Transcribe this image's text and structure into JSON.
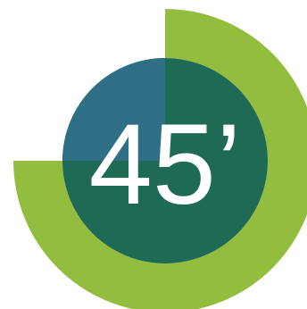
{
  "indicator": {
    "label": "45’",
    "minutes": 45,
    "max_minutes": 60,
    "fraction": 0.75
  },
  "colors": {
    "ring": "#93bd3e",
    "disc": "#1f6a54",
    "disc_highlight": "#2f6f86",
    "text": "#ffffff",
    "background": "#ffffff"
  }
}
